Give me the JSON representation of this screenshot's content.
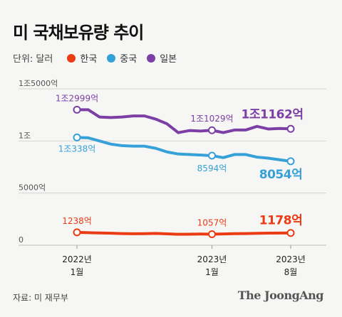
{
  "title": "미 국채보유량 추이",
  "unit": "단위: 달러",
  "source": "자료: 미 재무부",
  "logo": "The JoongAng",
  "legend": [
    {
      "label": "한국",
      "color": "#ea3b14"
    },
    {
      "label": "중국",
      "color": "#36a1d8"
    },
    {
      "label": "일본",
      "color": "#7b3fa6"
    }
  ],
  "chart_data": {
    "type": "line",
    "ylim": [
      0,
      15000
    ],
    "yticks": [
      {
        "value": 15000,
        "label": "1조5000억"
      },
      {
        "value": 10000,
        "label": "1조"
      },
      {
        "value": 5000,
        "label": "5000억"
      },
      {
        "value": 0,
        "label": "0"
      }
    ],
    "xticks": [
      {
        "index": 0,
        "label": [
          "2022년",
          "1월"
        ]
      },
      {
        "index": 12,
        "label": [
          "2023년",
          "1월"
        ]
      },
      {
        "index": 19,
        "label": [
          "2023년",
          "8월"
        ]
      }
    ],
    "x": [
      "2022-01",
      "2022-02",
      "2022-03",
      "2022-04",
      "2022-05",
      "2022-06",
      "2022-07",
      "2022-08",
      "2022-09",
      "2022-10",
      "2022-11",
      "2022-12",
      "2023-01",
      "2023-02",
      "2023-03",
      "2023-04",
      "2023-05",
      "2023-06",
      "2023-07",
      "2023-08"
    ],
    "series": [
      {
        "name": "일본",
        "color": "#7b3fa6",
        "values": [
          12999,
          13000,
          12300,
          12250,
          12300,
          12400,
          12400,
          12100,
          11650,
          10800,
          11000,
          10950,
          11029,
          10800,
          11050,
          11050,
          11400,
          11150,
          11200,
          11162
        ],
        "labels": [
          {
            "index": 0,
            "text": "1조2999억"
          },
          {
            "index": 12,
            "text": "1조1029억"
          },
          {
            "index": 19,
            "text": "1조1162억"
          }
        ]
      },
      {
        "name": "중국",
        "color": "#36a1d8",
        "values": [
          10338,
          10300,
          10000,
          9700,
          9550,
          9500,
          9500,
          9300,
          8950,
          8750,
          8700,
          8650,
          8594,
          8400,
          8700,
          8700,
          8450,
          8350,
          8200,
          8054
        ],
        "labels": [
          {
            "index": 0,
            "text": "1조338억"
          },
          {
            "index": 12,
            "text": "8594억"
          },
          {
            "index": 19,
            "text": "8054억"
          }
        ]
      },
      {
        "name": "한국",
        "color": "#ea3b14",
        "values": [
          1238,
          1200,
          1180,
          1150,
          1120,
          1100,
          1110,
          1130,
          1090,
          1050,
          1060,
          1070,
          1057,
          1080,
          1110,
          1120,
          1140,
          1160,
          1170,
          1178
        ],
        "labels": [
          {
            "index": 0,
            "text": "1238억"
          },
          {
            "index": 12,
            "text": "1057억"
          },
          {
            "index": 19,
            "text": "1178억"
          }
        ]
      }
    ]
  }
}
